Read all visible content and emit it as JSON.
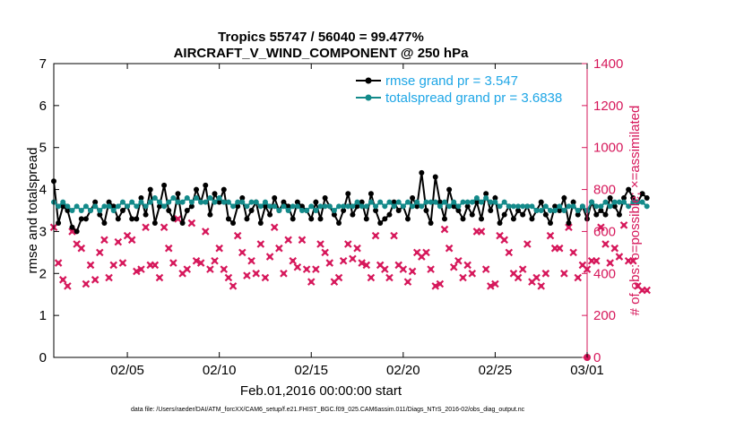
{
  "title_line1": "Tropics 55747 / 56040 = 99.477%",
  "title_line2": "AIRCRAFT_V_WIND_COMPONENT @ 250 hPa",
  "footer": "data file: /Users/raeder/DAI/ATM_forcXX/CAM6_setup/f.e21.FHIST_BGC.f09_025.CAM6assim.011/Diags_NTrS_2016-02/obs_diag_output.nc",
  "colors": {
    "rmse": "#000000",
    "spread": "#138a8a",
    "obs": "#d6185b",
    "legend_text": "#1ea6e6"
  },
  "chart_data": {
    "type": "line",
    "xlabel": "Feb.01,2016 00:00:00 start",
    "ylabel_left": "rmse and totalspread",
    "ylabel_right": "# of obs: o=possible; ×=assimilated",
    "x_ticks": [
      "02/05",
      "02/10",
      "02/15",
      "02/20",
      "02/25",
      "03/01"
    ],
    "x_tick_days": [
      5,
      10,
      15,
      20,
      25,
      30
    ],
    "x_range_days": [
      1,
      30
    ],
    "y_left_range": [
      0,
      7
    ],
    "y_left_ticks": [
      "0",
      "1",
      "2",
      "3",
      "4",
      "5",
      "6",
      "7"
    ],
    "y_right_range": [
      0,
      1400
    ],
    "y_right_ticks": [
      "0",
      "200",
      "400",
      "600",
      "800",
      "1000",
      "1200",
      "1400"
    ],
    "grid": false,
    "legend_position": "top-right",
    "legend": [
      "rmse grand pr = 3.547",
      "totalspread grand pr = 3.6838"
    ],
    "x_start_day": 1,
    "x_step_days": 0.25,
    "series": [
      {
        "name": "rmse grand pr = 3.547",
        "axis": "left",
        "values": [
          4.2,
          3.2,
          3.6,
          3.5,
          3.1,
          3.0,
          3.3,
          3.3,
          3.5,
          3.7,
          3.4,
          3.2,
          3.7,
          3.6,
          3.3,
          3.5,
          3.6,
          3.3,
          3.3,
          3.8,
          3.4,
          4.0,
          3.2,
          3.6,
          4.1,
          3.5,
          3.3,
          3.9,
          3.2,
          3.5,
          3.6,
          4.0,
          3.7,
          4.1,
          3.4,
          3.9,
          3.7,
          4.0,
          3.3,
          3.2,
          3.6,
          3.8,
          3.3,
          3.5,
          3.7,
          3.2,
          3.6,
          3.4,
          3.8,
          3.5,
          3.7,
          3.6,
          3.3,
          3.7,
          3.6,
          3.5,
          3.3,
          3.7,
          3.3,
          3.8,
          3.6,
          3.4,
          3.2,
          3.5,
          3.9,
          3.4,
          3.6,
          3.7,
          3.3,
          3.9,
          3.5,
          3.2,
          3.3,
          3.4,
          3.7,
          3.5,
          3.6,
          3.3,
          3.8,
          3.6,
          4.4,
          3.5,
          3.2,
          4.3,
          3.7,
          3.3,
          4.0,
          3.6,
          3.5,
          3.3,
          3.6,
          3.4,
          3.7,
          3.3,
          3.9,
          3.5,
          3.8,
          3.2,
          3.4,
          3.6,
          3.3,
          3.5,
          3.4,
          3.6,
          3.3,
          3.5,
          3.7,
          3.4,
          3.2,
          3.6,
          3.5,
          3.8,
          3.2,
          3.7,
          3.4,
          3.6,
          3.3,
          3.7,
          3.4,
          3.5,
          3.4,
          3.8,
          3.6,
          3.4,
          3.8,
          4.0,
          3.8,
          3.7,
          3.9,
          3.8
        ]
      },
      {
        "name": "totalspread grand pr = 3.6838",
        "axis": "left",
        "values": [
          3.7,
          3.6,
          3.7,
          3.6,
          3.5,
          3.6,
          3.5,
          3.6,
          3.5,
          3.6,
          3.5,
          3.6,
          3.6,
          3.5,
          3.6,
          3.7,
          3.6,
          3.7,
          3.6,
          3.7,
          3.6,
          3.7,
          3.8,
          3.7,
          3.6,
          3.7,
          3.8,
          3.7,
          3.7,
          3.8,
          3.7,
          3.8,
          3.7,
          3.7,
          3.8,
          3.7,
          3.8,
          3.7,
          3.7,
          3.6,
          3.7,
          3.7,
          3.6,
          3.7,
          3.7,
          3.6,
          3.7,
          3.6,
          3.6,
          3.5,
          3.6,
          3.5,
          3.6,
          3.6,
          3.5,
          3.5,
          3.6,
          3.5,
          3.6,
          3.6,
          3.6,
          3.5,
          3.6,
          3.6,
          3.6,
          3.6,
          3.7,
          3.6,
          3.6,
          3.7,
          3.6,
          3.7,
          3.6,
          3.7,
          3.6,
          3.7,
          3.6,
          3.7,
          3.6,
          3.7,
          3.6,
          3.7,
          3.7,
          3.7,
          3.6,
          3.7,
          3.6,
          3.7,
          3.6,
          3.7,
          3.7,
          3.7,
          3.8,
          3.7,
          3.8,
          3.7,
          3.7,
          3.6,
          3.7,
          3.6,
          3.6,
          3.6,
          3.6,
          3.6,
          3.6,
          3.5,
          3.5,
          3.6,
          3.5,
          3.5,
          3.6,
          3.5,
          3.6,
          3.6,
          3.5,
          3.6,
          3.5,
          3.7,
          3.6,
          3.6,
          3.7,
          3.6,
          3.7,
          3.7,
          3.7,
          3.6,
          3.7,
          3.7,
          3.7,
          3.6
        ]
      },
      {
        "name": "",
        "axis": "right",
        "values": [
          620,
          450,
          370,
          340,
          600,
          540,
          520,
          350,
          440,
          370,
          500,
          560,
          380,
          440,
          550,
          450,
          580,
          560,
          410,
          420,
          620,
          440,
          440,
          380,
          620,
          520,
          450,
          660,
          400,
          420,
          640,
          460,
          450,
          600,
          420,
          460,
          520,
          420,
          380,
          340,
          580,
          500,
          390,
          460,
          400,
          540,
          380,
          480,
          620,
          520,
          400,
          560,
          460,
          430,
          560,
          420,
          360,
          420,
          540,
          500,
          450,
          360,
          380,
          460,
          540,
          470,
          520,
          450,
          440,
          380,
          580,
          440,
          420,
          380,
          580,
          440,
          420,
          360,
          410,
          500,
          480,
          500,
          420,
          340,
          350,
          610,
          520,
          430,
          460,
          380,
          440,
          400,
          600,
          600,
          420,
          340,
          350,
          580,
          560,
          500,
          400,
          380,
          420,
          540,
          360,
          380,
          340,
          400,
          580,
          520,
          520,
          400,
          620,
          500,
          380,
          440,
          420,
          460,
          460,
          620,
          540,
          450,
          520,
          480,
          630,
          460,
          460,
          340,
          320,
          320
        ]
      }
    ]
  }
}
